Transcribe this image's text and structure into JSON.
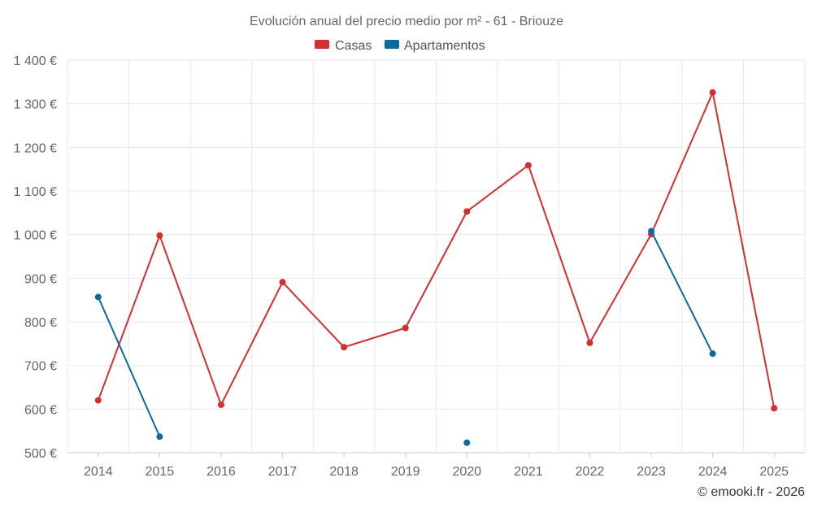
{
  "chart_data": {
    "type": "line",
    "title": "Evolución anual del precio medio por m² - 61 - Briouze",
    "categories": [
      "2014",
      "2015",
      "2016",
      "2017",
      "2018",
      "2019",
      "2020",
      "2021",
      "2022",
      "2023",
      "2024",
      "2025"
    ],
    "ylim": [
      500,
      1400
    ],
    "ytick_step": 100,
    "y_tick_labels": [
      "500 €",
      "600 €",
      "700 €",
      "800 €",
      "900 €",
      "1 000 €",
      "1 100 €",
      "1 200 €",
      "1 300 €",
      "1 400 €"
    ],
    "legend_position": "top-center",
    "series": [
      {
        "name": "Casas",
        "color": "#d32f2f",
        "values": [
          620,
          998,
          610,
          891,
          742,
          786,
          1053,
          1159,
          752,
          1001,
          1326,
          602
        ]
      },
      {
        "name": "Apartamentos",
        "color": "#0a6aa1",
        "values": [
          857,
          537,
          null,
          null,
          null,
          null,
          523,
          null,
          null,
          1008,
          727,
          null
        ]
      }
    ]
  },
  "credit": "© emooki.fr - 2026"
}
